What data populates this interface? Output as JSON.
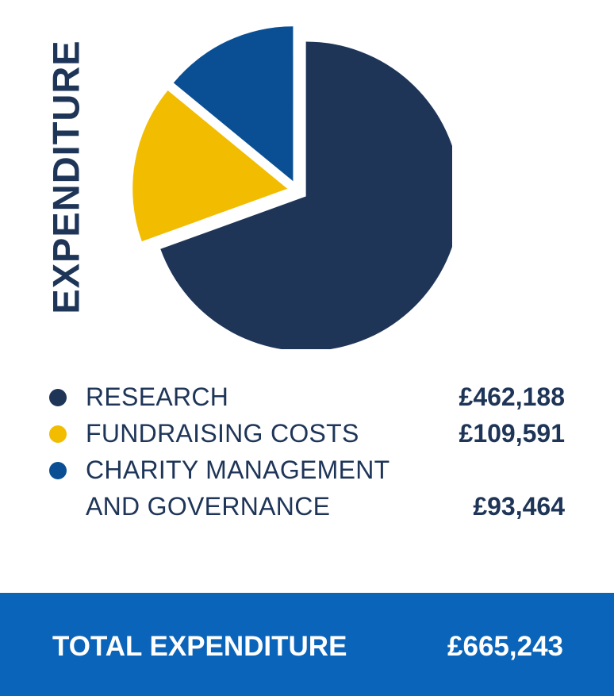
{
  "chart_data": {
    "type": "pie",
    "title": "EXPENDITURE",
    "slices": [
      {
        "label": "RESEARCH",
        "value": 462188,
        "value_text": "£462,188",
        "color": "#1e3558"
      },
      {
        "label": "FUNDRAISING COSTS",
        "value": 109591,
        "value_text": "£109,591",
        "color": "#f2bc00"
      },
      {
        "label_line1": "CHARITY MANAGEMENT",
        "label_line2": "AND GOVERNANCE",
        "value": 93464,
        "value_text": "£93,464",
        "color": "#0a4f94"
      }
    ],
    "legend_position": "bottom",
    "total_label": "TOTAL EXPENDITURE",
    "total_value": "£665,243"
  },
  "colors": {
    "text_navy": "#1e3558",
    "total_bar": "#0a64b9"
  }
}
